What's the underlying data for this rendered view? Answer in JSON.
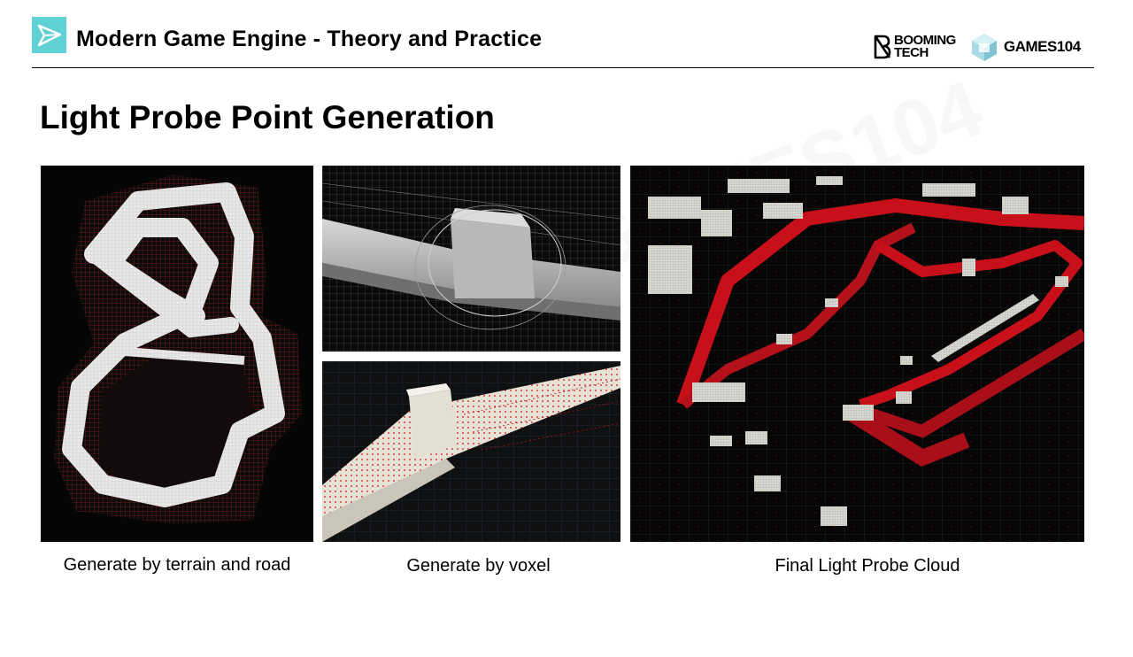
{
  "header": {
    "course_title": "Modern Game Engine - Theory and Practice",
    "brand_booming_line1": "BOOMING",
    "brand_booming_line2": "TECH",
    "brand_games": "GAMES104"
  },
  "slide": {
    "title": "Light Probe Point Generation"
  },
  "panels": [
    {
      "caption": "Generate by terrain and road"
    },
    {
      "caption": "Generate by voxel"
    },
    {
      "caption": "Final Light Probe Cloud"
    }
  ],
  "icons": {
    "header_logo": "play-triangle-icon",
    "booming": "booming-tech-logo-icon",
    "games": "games104-cube-icon"
  },
  "colors": {
    "accent": "#5fd0d3",
    "probe_red": "#d0101a"
  }
}
